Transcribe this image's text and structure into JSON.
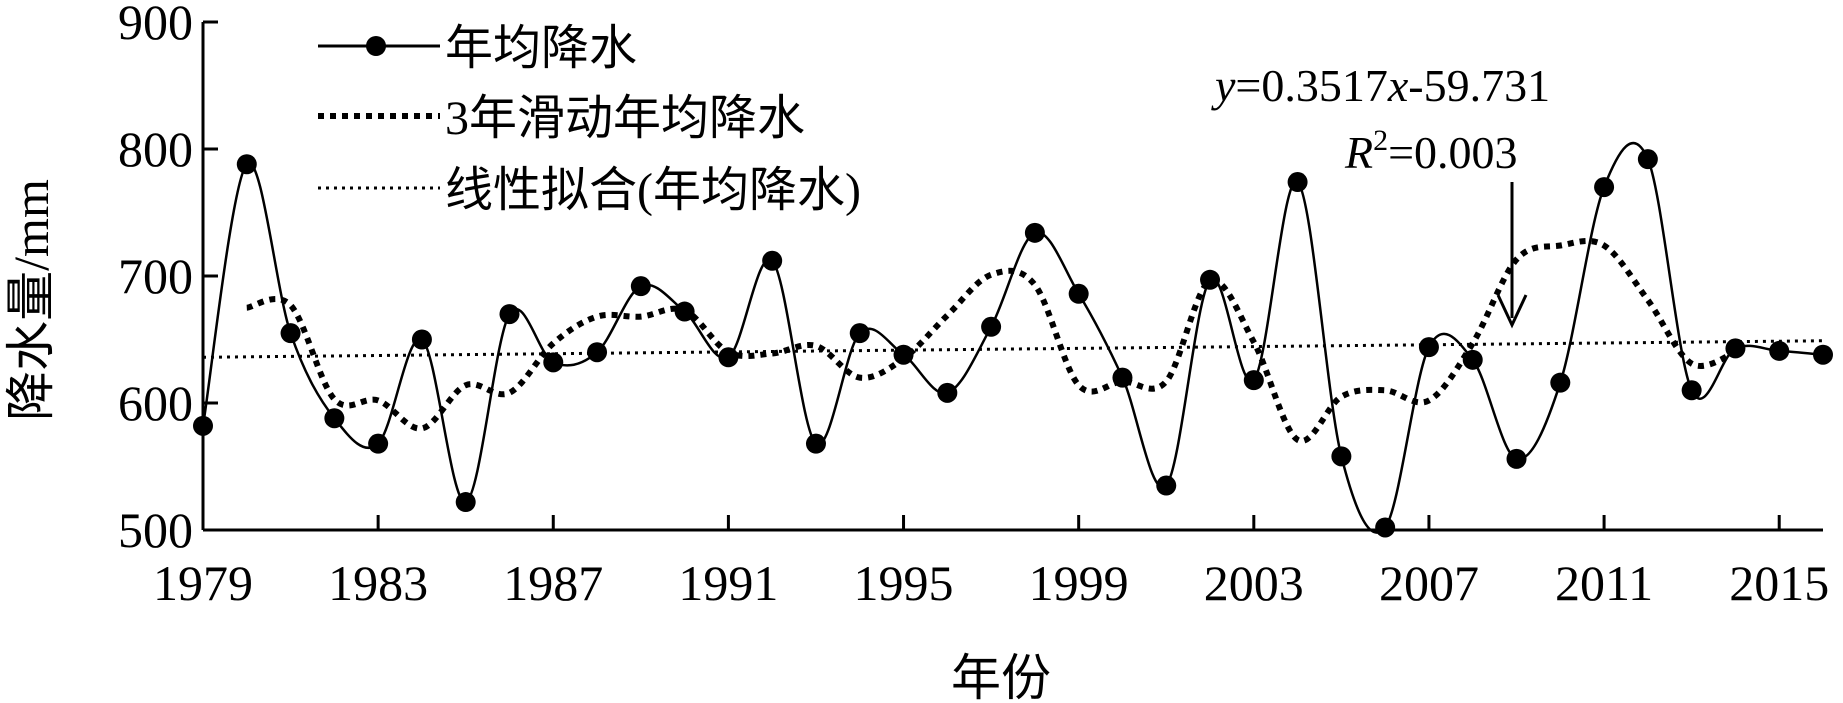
{
  "chart_data": {
    "type": "line",
    "xlabel": "年份",
    "ylabel": "降水量/mm",
    "xlim": [
      1979,
      2016
    ],
    "ylim": [
      500,
      900
    ],
    "xticks": [
      1979,
      1983,
      1987,
      1991,
      1995,
      1999,
      2003,
      2007,
      2011,
      2015
    ],
    "yticks": [
      500,
      600,
      700,
      800,
      900
    ],
    "grid": false,
    "legend_position": "top-left",
    "x": [
      1979,
      1980,
      1981,
      1982,
      1983,
      1984,
      1985,
      1986,
      1987,
      1988,
      1989,
      1990,
      1991,
      1992,
      1993,
      1994,
      1995,
      1996,
      1997,
      1998,
      1999,
      2000,
      2001,
      2002,
      2003,
      2004,
      2005,
      2006,
      2007,
      2008,
      2009,
      2010,
      2011,
      2012,
      2013,
      2014,
      2015,
      2016
    ],
    "series": [
      {
        "name": "年均降水",
        "style": "solid-markers",
        "values": [
          582,
          788,
          655,
          588,
          568,
          650,
          522,
          670,
          632,
          640,
          692,
          672,
          636,
          712,
          568,
          655,
          638,
          608,
          660,
          734,
          686,
          620,
          535,
          697,
          618,
          774,
          558,
          502,
          644,
          634,
          556,
          616,
          770,
          792,
          610,
          643,
          641,
          638
        ]
      },
      {
        "name": "3年滑动年均降水",
        "style": "dotted-thick",
        "values": [
          null,
          675,
          677,
          603,
          602,
          580,
          614,
          608,
          647,
          668,
          668,
          673,
          640,
          639,
          645,
          620,
          635,
          669,
          701,
          693,
          614,
          617,
          617,
          696,
          648,
          571,
          605,
          610,
          602,
          647,
          713,
          724,
          724,
          681,
          631,
          640,
          null,
          null
        ]
      },
      {
        "name": "线性拟合(年均降水)",
        "style": "dotted-thin",
        "values": [
          636,
          637,
          637,
          637,
          638,
          638,
          638,
          639,
          639,
          639,
          640,
          640,
          640,
          641,
          641,
          642,
          642,
          642,
          643,
          643,
          643,
          644,
          644,
          644,
          645,
          645,
          646,
          646,
          646,
          647,
          647,
          647,
          648,
          648,
          648,
          649,
          649,
          649
        ]
      }
    ],
    "annotations": {
      "equation_y": "y",
      "equation_rest": "=0.3517",
      "equation_x": "x",
      "equation_tail": "-59.731",
      "r2_label": "R",
      "r2_sup": "2",
      "r2_value": "=0.003"
    }
  }
}
